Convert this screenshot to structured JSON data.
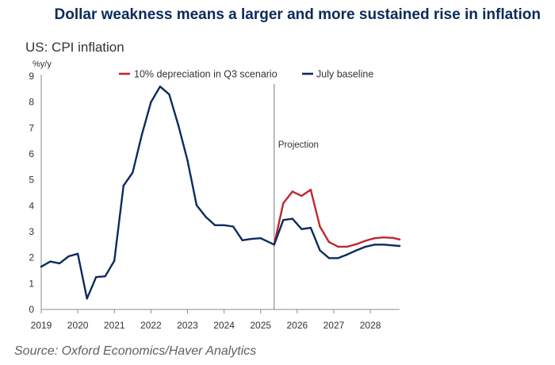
{
  "headline": "Dollar weakness means a larger and more sustained rise in inflation",
  "source": "Source: Oxford Economics/Haver Analytics",
  "chart_data": {
    "type": "line",
    "title": "US: CPI inflation",
    "ylabel": "%y/y",
    "xlabel": "",
    "ylim": [
      0,
      9
    ],
    "yticks": [
      "0",
      "1",
      "2",
      "3",
      "4",
      "5",
      "6",
      "7",
      "8",
      "9"
    ],
    "xlim": [
      2019,
      2028.8
    ],
    "xticks": [
      "2019",
      "2020",
      "2021",
      "2022",
      "2023",
      "2024",
      "2025",
      "2026",
      "2027",
      "2028"
    ],
    "grid": false,
    "legend_position": "top",
    "projection": {
      "label": "Projection",
      "x": 2025.37
    },
    "series": [
      {
        "name": "10% depreciation in Q3 scenario",
        "color": "#c0272d",
        "x": [
          2025.37,
          2025.62,
          2025.87,
          2026.12,
          2026.37,
          2026.62,
          2026.87,
          2027.12,
          2027.37,
          2027.62,
          2027.87,
          2028.12,
          2028.37,
          2028.62,
          2028.8
        ],
        "values": [
          2.5,
          4.1,
          4.55,
          4.38,
          4.62,
          3.2,
          2.6,
          2.42,
          2.42,
          2.52,
          2.65,
          2.75,
          2.78,
          2.76,
          2.7
        ]
      },
      {
        "name": "July baseline",
        "color": "#0d2b5e",
        "x": [
          2019.0,
          2019.25,
          2019.5,
          2019.75,
          2020.0,
          2020.25,
          2020.5,
          2020.75,
          2021.0,
          2021.25,
          2021.5,
          2021.75,
          2022.0,
          2022.25,
          2022.5,
          2022.75,
          2023.0,
          2023.25,
          2023.5,
          2023.75,
          2024.0,
          2024.25,
          2024.5,
          2024.75,
          2025.0,
          2025.37,
          2025.62,
          2025.87,
          2026.12,
          2026.37,
          2026.62,
          2026.87,
          2027.12,
          2027.37,
          2027.62,
          2027.87,
          2028.12,
          2028.37,
          2028.62,
          2028.8
        ],
        "values": [
          1.65,
          1.85,
          1.78,
          2.05,
          2.15,
          0.42,
          1.25,
          1.28,
          1.88,
          4.78,
          5.28,
          6.73,
          8.0,
          8.6,
          8.3,
          7.1,
          5.75,
          4.02,
          3.57,
          3.25,
          3.25,
          3.2,
          2.67,
          2.72,
          2.75,
          2.5,
          3.45,
          3.5,
          3.1,
          3.15,
          2.28,
          1.98,
          1.98,
          2.12,
          2.28,
          2.42,
          2.5,
          2.5,
          2.47,
          2.45
        ]
      }
    ]
  }
}
